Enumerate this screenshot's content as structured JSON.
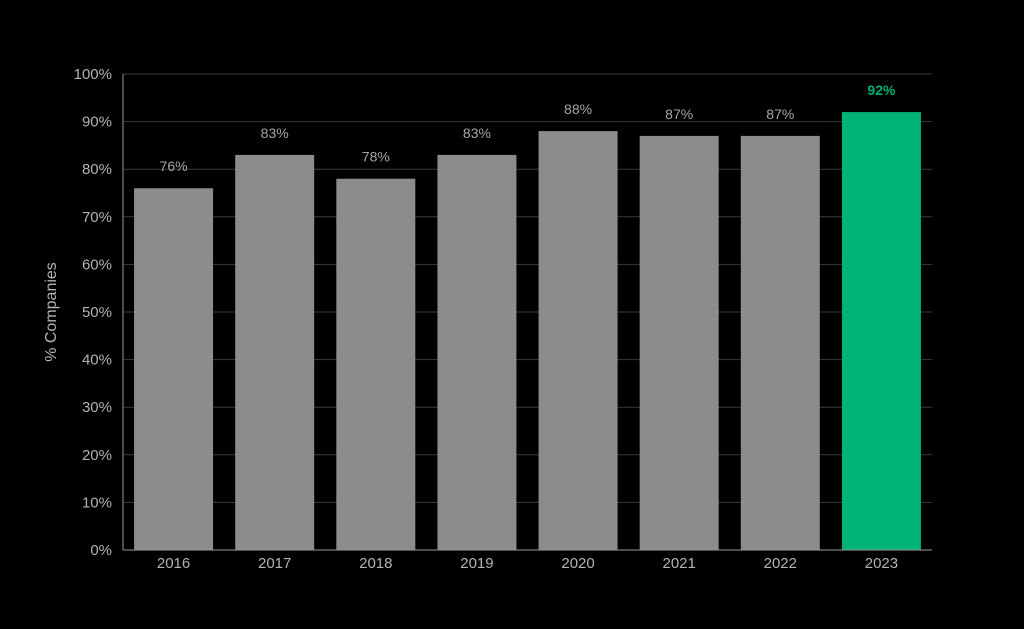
{
  "chart_data": {
    "type": "bar",
    "title": "",
    "xlabel": "",
    "ylabel": "% Companies",
    "categories": [
      "2016",
      "2017",
      "2018",
      "2019",
      "2020",
      "2021",
      "2022",
      "2023"
    ],
    "values": [
      76,
      83,
      78,
      83,
      88,
      87,
      87,
      92
    ],
    "data_labels": [
      "76%",
      "83%",
      "78%",
      "83%",
      "88%",
      "87%",
      "87%",
      "92%"
    ],
    "ylim": [
      0,
      100
    ],
    "y_ticks": [
      0,
      10,
      20,
      30,
      40,
      50,
      60,
      70,
      80,
      90,
      100
    ],
    "y_tick_labels": [
      "0%",
      "10%",
      "20%",
      "30%",
      "40%",
      "50%",
      "60%",
      "70%",
      "80%",
      "90%",
      "100%"
    ],
    "grid": true,
    "legend": "none",
    "highlighted_category": "2023",
    "colors": {
      "background": "#000000",
      "bar": "#8c8c8c",
      "highlight": "#00b274",
      "grid": "#3a3a3a",
      "text": "#b3b3b3"
    }
  }
}
